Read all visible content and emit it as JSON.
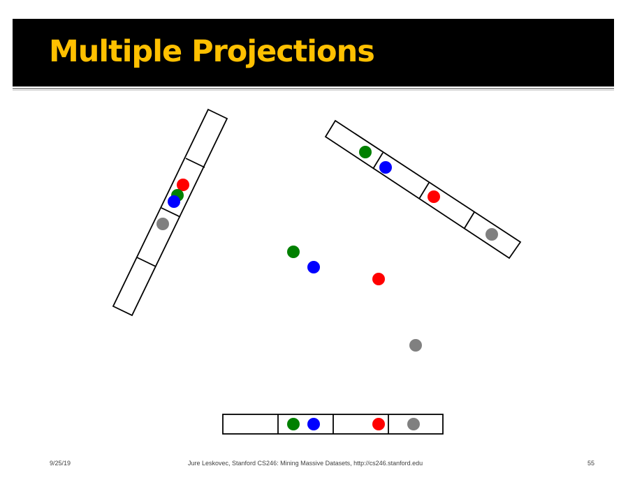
{
  "slide": {
    "title": "Multiple Projections"
  },
  "footer": {
    "date": "9/25/19",
    "credit": "Jure Leskovec, Stanford CS246: Mining Massive Datasets, http://cs246.stanford.edu",
    "page_number": "55"
  },
  "colors": {
    "title_bar": "#000000",
    "title_text": "#ffc000",
    "point_green": "#008000",
    "point_blue": "#0000ff",
    "point_red": "#ff0000",
    "point_gray": "#808080"
  },
  "points": [
    {
      "name": "green",
      "color": "#008000"
    },
    {
      "name": "blue",
      "color": "#0000ff"
    },
    {
      "name": "red",
      "color": "#ff0000"
    },
    {
      "name": "gray",
      "color": "#808080"
    }
  ],
  "projection_lines": [
    {
      "name": "bottom-horizontal",
      "buckets": 4
    },
    {
      "name": "left-steep",
      "buckets": 4
    },
    {
      "name": "upper-right-diagonal",
      "buckets": 4
    }
  ]
}
